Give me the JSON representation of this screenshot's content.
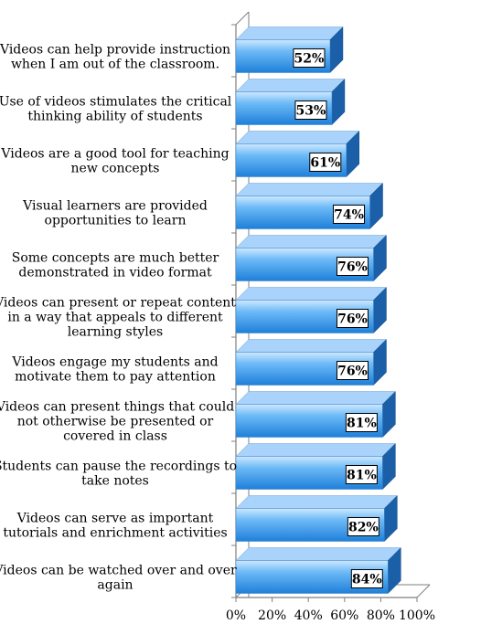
{
  "chart_data": {
    "type": "bar",
    "orientation": "horizontal",
    "style": "3d",
    "categories": [
      "Videos can help provide instruction when I am out of the classroom.",
      "Use of videos stimulates the critical thinking ability of students",
      "Videos are a good tool for teaching new concepts",
      "Visual learners are provided opportunities to learn",
      "Some concepts are much better demonstrated in video format",
      "Videos can present or repeat content in a way that appeals to different learning styles",
      "Videos engage my students and motivate them to pay attention",
      "Videos can present things that could not otherwise be presented or covered in class",
      "Students can pause the recordings to take notes",
      "Videos can serve as important tutorials and enrichment activities",
      "Videos can be watched over and over again"
    ],
    "category_lines": [
      [
        "Videos can help provide instruction",
        "when I am out of the classroom."
      ],
      [
        "Use of videos stimulates the critical",
        "thinking ability of students"
      ],
      [
        "Videos are a good tool for teaching",
        "new concepts"
      ],
      [
        "Visual learners are provided",
        "opportunities to learn"
      ],
      [
        "Some concepts are much better",
        "demonstrated in video format"
      ],
      [
        "Videos can present or repeat content",
        "in a way that appeals to different",
        "learning styles"
      ],
      [
        "Videos engage my students and",
        "motivate them to pay attention"
      ],
      [
        "Videos can present things that could",
        "not otherwise be presented or",
        "covered in class"
      ],
      [
        "Students can pause the recordings to",
        "take notes"
      ],
      [
        "Videos can serve as important",
        "tutorials and enrichment activities"
      ],
      [
        "Videos can be watched over and over",
        "again"
      ]
    ],
    "values": [
      52,
      53,
      61,
      74,
      76,
      76,
      76,
      81,
      81,
      82,
      84
    ],
    "data_labels": [
      "52%",
      "53%",
      "61%",
      "74%",
      "76%",
      "76%",
      "76%",
      "81%",
      "81%",
      "82%",
      "84%"
    ],
    "xlim": [
      0,
      100
    ],
    "xticks": [
      0,
      20,
      40,
      60,
      80,
      100
    ],
    "xtick_labels": [
      "0%",
      "20%",
      "40%",
      "60%",
      "80%",
      "100%"
    ],
    "title": "",
    "xlabel": "",
    "ylabel": "",
    "grid": false,
    "legend": "none",
    "colors": {
      "bar_front_top": "#cfe8ff",
      "bar_front_mid": "#5fb2f5",
      "bar_front_bottom": "#1e7fd9",
      "bar_top": "#a9d3fa",
      "bar_side": "#1a5fa8",
      "axis": "#7f7f7f"
    }
  }
}
